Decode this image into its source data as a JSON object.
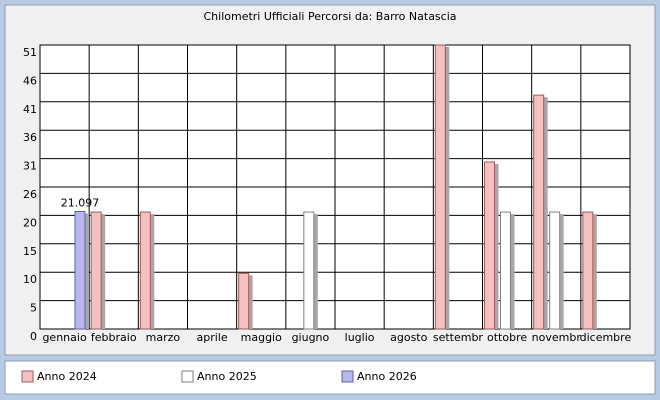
{
  "chart_data": {
    "type": "bar",
    "title": "Chilometri Ufficiali Percorsi da: Barro Natascia",
    "categories": [
      "gennaio",
      "febbraio",
      "marzo",
      "aprile",
      "maggio",
      "giugno",
      "luglio",
      "agosto",
      "settembr",
      "ottobre",
      "novembr",
      "dicembre"
    ],
    "series": [
      {
        "name": "Anno 2024",
        "color": "#f4c0c0",
        "values": [
          null,
          21,
          21,
          null,
          10,
          null,
          null,
          null,
          51,
          30,
          42,
          21
        ]
      },
      {
        "name": "Anno 2025",
        "color": "#ffffff",
        "values": [
          null,
          null,
          null,
          null,
          null,
          21,
          null,
          null,
          null,
          21,
          21,
          null
        ]
      },
      {
        "name": "Anno 2026",
        "color": "#b8b8f0",
        "values": [
          21.097,
          null,
          null,
          null,
          null,
          null,
          null,
          null,
          null,
          null,
          null,
          null
        ]
      }
    ],
    "ylim": [
      0,
      51
    ],
    "yticks": [
      0,
      {
        "value": 5.1,
        "label": "5"
      },
      {
        "value": 10.2,
        "label": "10"
      },
      {
        "value": 15.3,
        "label": "15"
      },
      {
        "value": 20.4,
        "label": "20"
      },
      {
        "value": 25.5,
        "label": "26"
      },
      {
        "value": 30.6,
        "label": "31"
      },
      {
        "value": 35.7,
        "label": "36"
      },
      {
        "value": 40.8,
        "label": "41"
      },
      {
        "value": 45.9,
        "label": "46"
      },
      51
    ],
    "grid": true
  }
}
